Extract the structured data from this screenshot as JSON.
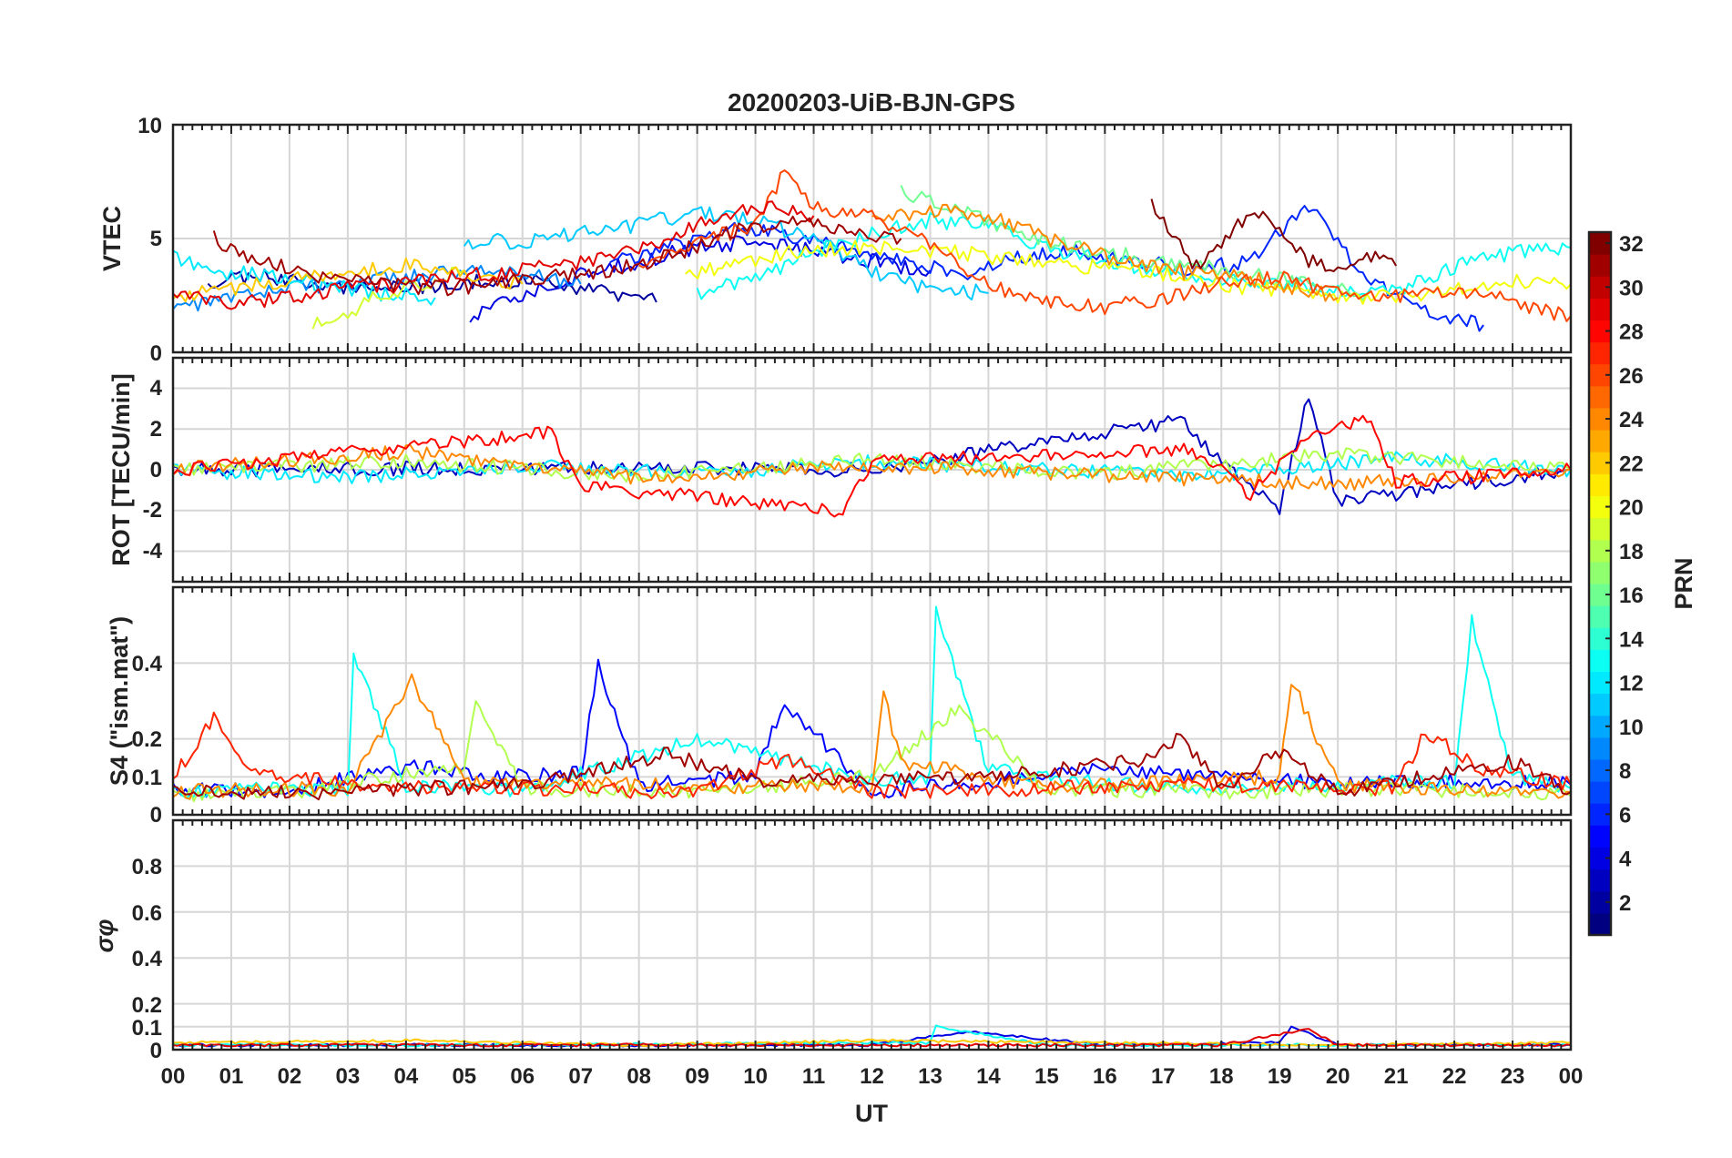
{
  "figure_title": "20200203-UiB-BJN-GPS",
  "x_axis": {
    "label": "UT",
    "tick_labels": [
      "00",
      "01",
      "02",
      "03",
      "04",
      "05",
      "06",
      "07",
      "08",
      "09",
      "10",
      "11",
      "12",
      "13",
      "14",
      "15",
      "16",
      "17",
      "18",
      "19",
      "20",
      "21",
      "22",
      "23",
      "00"
    ]
  },
  "colorbar": {
    "label": "PRN",
    "colormap": "jet",
    "range": [
      1,
      32
    ],
    "tick_labels": [
      "2",
      "4",
      "6",
      "8",
      "10",
      "12",
      "14",
      "16",
      "18",
      "20",
      "22",
      "24",
      "26",
      "28",
      "30",
      "32"
    ]
  },
  "chart_data": [
    {
      "type": "line",
      "panel": "vtec",
      "ylabel": "VTEC",
      "ylim": [
        0,
        10
      ],
      "ytick_labels": [
        "0",
        "5",
        "10"
      ],
      "xlim": [
        0,
        24
      ],
      "grid": true,
      "series": [
        {
          "prn": 2,
          "x": [
            0.6,
            1.5,
            2.5,
            3.5,
            4.5,
            5.5,
            6.5,
            7.5,
            8.3
          ],
          "y": [
            3.0,
            3.4,
            3.0,
            2.8,
            2.9,
            3.2,
            3.0,
            2.6,
            2.2
          ]
        },
        {
          "prn": 4,
          "x": [
            5.1,
            6.0,
            7.0,
            8.0,
            9.0,
            10.0,
            11.0,
            12.0,
            13.0
          ],
          "y": [
            1.5,
            2.6,
            3.4,
            4.0,
            4.6,
            4.9,
            4.4,
            4.0,
            3.6
          ]
        },
        {
          "prn": 6,
          "x": [
            7.5,
            8.5,
            9.5,
            10.5,
            11.5,
            12.5,
            13.5,
            14.5,
            15.5,
            16.5,
            17.5,
            18.5,
            19.5,
            20.5,
            21.5,
            22.5
          ],
          "y": [
            4.0,
            4.6,
            5.5,
            5.2,
            4.6,
            4.0,
            3.4,
            4.2,
            4.4,
            4.0,
            3.6,
            4.0,
            6.5,
            3.2,
            1.8,
            1.2
          ]
        },
        {
          "prn": 9,
          "x": [
            0.0,
            1.0,
            2.0,
            3.0,
            4.0,
            5.0,
            6.0,
            7.0
          ],
          "y": [
            2.0,
            2.4,
            2.8,
            3.0,
            3.3,
            3.6,
            3.4,
            3.0
          ]
        },
        {
          "prn": 11,
          "x": [
            5.0,
            6.0,
            7.0,
            8.0,
            9.0,
            10.0,
            11.0,
            12.0,
            13.0,
            14.0
          ],
          "y": [
            4.8,
            4.9,
            5.2,
            5.6,
            6.2,
            5.8,
            5.0,
            3.6,
            2.8,
            2.6
          ]
        },
        {
          "prn": 12,
          "x": [
            0.0,
            0.5,
            1.5,
            2.5,
            3.5,
            4.5
          ],
          "y": [
            4.2,
            3.6,
            3.4,
            3.0,
            2.6,
            2.4
          ]
        },
        {
          "prn": 13,
          "x": [
            9.0,
            10.0,
            11.0,
            12.0,
            13.0,
            14.0,
            15.0,
            16.0,
            17.0,
            18.0,
            19.0,
            20.0,
            21.0,
            22.0,
            23.0,
            24.0
          ],
          "y": [
            2.6,
            3.2,
            4.4,
            5.2,
            5.8,
            5.6,
            4.6,
            4.0,
            3.6,
            3.2,
            3.0,
            2.8,
            2.6,
            3.8,
            4.4,
            4.6
          ]
        },
        {
          "prn": 16,
          "x": [
            12.5,
            13.5,
            14.5,
            15.5,
            16.5,
            17.5,
            18.5,
            19.5,
            20.5
          ],
          "y": [
            7.0,
            6.2,
            5.2,
            4.6,
            4.2,
            3.8,
            3.4,
            3.0,
            2.6
          ]
        },
        {
          "prn": 19,
          "x": [
            2.4,
            3.0,
            3.5,
            4.0,
            4.5,
            5.0
          ],
          "y": [
            1.2,
            1.8,
            2.4,
            2.8,
            3.2,
            3.6
          ]
        },
        {
          "prn": 20,
          "x": [
            8.8,
            9.5,
            10.5,
            11.5,
            12.5,
            13.5,
            14.5,
            15.5,
            16.5,
            17.5,
            18.5,
            19.5,
            20.5,
            21.5,
            22.5,
            23.5,
            24.0
          ],
          "y": [
            3.4,
            3.8,
            4.4,
            4.6,
            4.6,
            4.4,
            4.0,
            3.8,
            3.6,
            3.2,
            2.8,
            2.6,
            2.4,
            2.6,
            3.0,
            3.2,
            3.0
          ]
        },
        {
          "prn": 22,
          "x": [
            0.0,
            1.0,
            2.0,
            3.0,
            4.0,
            5.0,
            6.0
          ],
          "y": [
            2.4,
            2.8,
            3.2,
            3.6,
            3.8,
            3.4,
            3.0
          ]
        },
        {
          "prn": 24,
          "x": [
            12.0,
            13.0,
            14.0,
            15.0,
            16.0,
            17.0,
            18.0,
            19.0,
            20.0
          ],
          "y": [
            6.0,
            6.2,
            6.0,
            5.0,
            4.2,
            3.6,
            3.4,
            3.0,
            2.4
          ]
        },
        {
          "prn": 26,
          "x": [
            8.0,
            9.0,
            10.0,
            10.5,
            11.0,
            12.0,
            13.0,
            14.0,
            15.0,
            16.0,
            17.0,
            18.0,
            19.0,
            20.0,
            21.0,
            22.0,
            23.0,
            24.0
          ],
          "y": [
            4.0,
            4.8,
            5.6,
            8.0,
            6.4,
            6.0,
            4.8,
            3.0,
            2.2,
            2.0,
            2.4,
            3.0,
            3.4,
            2.6,
            2.4,
            2.8,
            2.2,
            1.6
          ]
        },
        {
          "prn": 29,
          "x": [
            0.0,
            1.0,
            2.0,
            3.0,
            4.0,
            5.0,
            6.0,
            7.0,
            8.0,
            9.0,
            10.0,
            11.0
          ],
          "y": [
            2.6,
            2.2,
            2.4,
            2.8,
            3.0,
            3.4,
            3.6,
            4.0,
            4.4,
            5.6,
            6.4,
            6.0
          ]
        },
        {
          "prn": 31,
          "x": [
            0.7,
            1.5,
            2.5,
            3.5,
            4.5,
            5.5,
            6.5,
            7.5,
            8.5,
            9.5,
            10.5,
            11.5,
            12.5
          ],
          "y": [
            5.0,
            4.0,
            3.4,
            3.0,
            2.8,
            3.0,
            3.4,
            3.6,
            4.2,
            5.2,
            5.8,
            5.4,
            5.0
          ]
        },
        {
          "prn": 32,
          "x": [
            16.8,
            17.5,
            18.0,
            18.5,
            19.0,
            19.5,
            20.0,
            20.5,
            21.0
          ],
          "y": [
            6.6,
            3.8,
            4.6,
            6.2,
            5.6,
            4.0,
            3.4,
            4.2,
            3.8
          ]
        }
      ]
    },
    {
      "type": "line",
      "panel": "rot",
      "ylabel": "ROT [TECU/min]",
      "ylim": [
        -5.5,
        5.5
      ],
      "ytick_labels": [
        "-4",
        "-2",
        "0",
        "2",
        "4"
      ],
      "xlim": [
        0,
        24
      ],
      "grid": true,
      "series": [
        {
          "prn": 3,
          "x": [
            0.0,
            6.0,
            12.0,
            17.3,
            18.5,
            19.0,
            19.5,
            20.0,
            24.0
          ],
          "y": [
            0.0,
            0.1,
            0.0,
            2.4,
            -0.8,
            -2.0,
            3.8,
            -1.6,
            0.0
          ]
        },
        {
          "prn": 12,
          "x": [
            0.0,
            3.0,
            6.0,
            9.0,
            12.0,
            15.0,
            18.0,
            21.0,
            24.0
          ],
          "y": [
            0.0,
            -0.4,
            0.2,
            -0.2,
            0.4,
            0.0,
            -0.3,
            0.6,
            0.0
          ]
        },
        {
          "prn": 18,
          "x": [
            0.0,
            4.0,
            8.0,
            12.0,
            16.0,
            20.0,
            24.0
          ],
          "y": [
            0.0,
            0.4,
            -0.3,
            0.5,
            -0.2,
            0.8,
            0.0
          ]
        },
        {
          "prn": 24,
          "x": [
            0.0,
            4.0,
            8.0,
            12.0,
            16.0,
            20.0,
            24.0
          ],
          "y": [
            0.0,
            0.9,
            -0.4,
            0.2,
            -0.3,
            -0.7,
            0.0
          ]
        },
        {
          "prn": 28,
          "x": [
            0.0,
            6.5,
            7.0,
            11.5,
            12.0,
            17.5,
            18.5,
            19.5,
            20.5,
            21.0,
            24.0
          ],
          "y": [
            0.0,
            1.8,
            -0.8,
            -2.0,
            0.4,
            1.0,
            -1.2,
            1.6,
            2.5,
            -0.6,
            0.0
          ]
        }
      ]
    },
    {
      "type": "line",
      "panel": "s4",
      "ylabel": "S4 (\"ism.mat\")",
      "ylim": [
        0,
        0.6
      ],
      "ytick_labels": [
        "0",
        "0.1",
        "0.2",
        "0.4"
      ],
      "xlim": [
        0,
        24
      ],
      "grid": true,
      "series": [
        {
          "prn": 5,
          "x": [
            0.0,
            2.0,
            4.0,
            5.5,
            7.0,
            7.3,
            8.0,
            10.0,
            10.5,
            12.0,
            14.0,
            16.0,
            18.0,
            20.0,
            22.0,
            24.0
          ],
          "y": [
            0.07,
            0.06,
            0.13,
            0.1,
            0.11,
            0.39,
            0.08,
            0.1,
            0.3,
            0.06,
            0.09,
            0.12,
            0.1,
            0.08,
            0.09,
            0.08
          ]
        },
        {
          "prn": 13,
          "x": [
            0.0,
            3.0,
            3.1,
            4.0,
            6.0,
            9.0,
            12.0,
            13.0,
            13.1,
            14.0,
            16.0,
            18.0,
            20.0,
            22.0,
            22.3,
            23.0,
            24.0
          ],
          "y": [
            0.06,
            0.07,
            0.43,
            0.08,
            0.06,
            0.2,
            0.09,
            0.1,
            0.53,
            0.12,
            0.08,
            0.07,
            0.08,
            0.09,
            0.51,
            0.1,
            0.07
          ]
        },
        {
          "prn": 18,
          "x": [
            0.0,
            2.0,
            5.0,
            5.2,
            6.0,
            9.0,
            12.0,
            13.5,
            15.0,
            18.0,
            21.0,
            24.0
          ],
          "y": [
            0.05,
            0.06,
            0.13,
            0.3,
            0.07,
            0.06,
            0.1,
            0.28,
            0.07,
            0.06,
            0.07,
            0.05
          ]
        },
        {
          "prn": 24,
          "x": [
            0.0,
            3.0,
            4.1,
            5.0,
            8.0,
            12.0,
            12.2,
            12.5,
            15.0,
            19.0,
            19.2,
            20.0,
            24.0
          ],
          "y": [
            0.06,
            0.07,
            0.36,
            0.09,
            0.08,
            0.07,
            0.32,
            0.14,
            0.07,
            0.1,
            0.36,
            0.08,
            0.06
          ]
        },
        {
          "prn": 27,
          "x": [
            0.0,
            0.7,
            1.2,
            3.0,
            6.0,
            9.0,
            10.5,
            12.0,
            15.0,
            18.0,
            21.0,
            21.5,
            22.5,
            24.0
          ],
          "y": [
            0.1,
            0.25,
            0.12,
            0.08,
            0.07,
            0.06,
            0.15,
            0.06,
            0.07,
            0.08,
            0.07,
            0.22,
            0.12,
            0.08
          ]
        },
        {
          "prn": 31,
          "x": [
            0.0,
            3.0,
            6.0,
            8.5,
            10.0,
            14.0,
            16.5,
            17.3,
            18.0,
            19.0,
            20.0,
            23.0,
            24.0
          ],
          "y": [
            0.06,
            0.06,
            0.08,
            0.16,
            0.09,
            0.1,
            0.14,
            0.2,
            0.07,
            0.17,
            0.06,
            0.14,
            0.06
          ]
        }
      ]
    },
    {
      "type": "line",
      "panel": "sigma_phi",
      "ylabel": "σφ",
      "ylim": [
        0,
        1.0
      ],
      "ytick_labels": [
        "0",
        "0.1",
        "0.2",
        "0.4",
        "0.6",
        "0.8"
      ],
      "xlim": [
        0,
        24
      ],
      "grid": true,
      "series": [
        {
          "prn": 4,
          "x": [
            0.0,
            6.0,
            12.0,
            13.7,
            16.0,
            19.0,
            19.2,
            20.0,
            24.0
          ],
          "y": [
            0.02,
            0.02,
            0.02,
            0.08,
            0.02,
            0.03,
            0.1,
            0.02,
            0.02
          ]
        },
        {
          "prn": 13,
          "x": [
            0.0,
            6.0,
            12.0,
            13.0,
            13.1,
            15.0,
            18.0,
            24.0
          ],
          "y": [
            0.02,
            0.02,
            0.03,
            0.03,
            0.1,
            0.02,
            0.02,
            0.02
          ]
        },
        {
          "prn": 22,
          "x": [
            0.0,
            4.0,
            8.0,
            12.0,
            16.0,
            20.0,
            24.0
          ],
          "y": [
            0.03,
            0.04,
            0.02,
            0.04,
            0.03,
            0.02,
            0.03
          ]
        },
        {
          "prn": 29,
          "x": [
            0.0,
            6.0,
            12.0,
            18.0,
            19.5,
            20.0,
            24.0
          ],
          "y": [
            0.02,
            0.02,
            0.02,
            0.02,
            0.09,
            0.02,
            0.02
          ]
        }
      ]
    }
  ]
}
